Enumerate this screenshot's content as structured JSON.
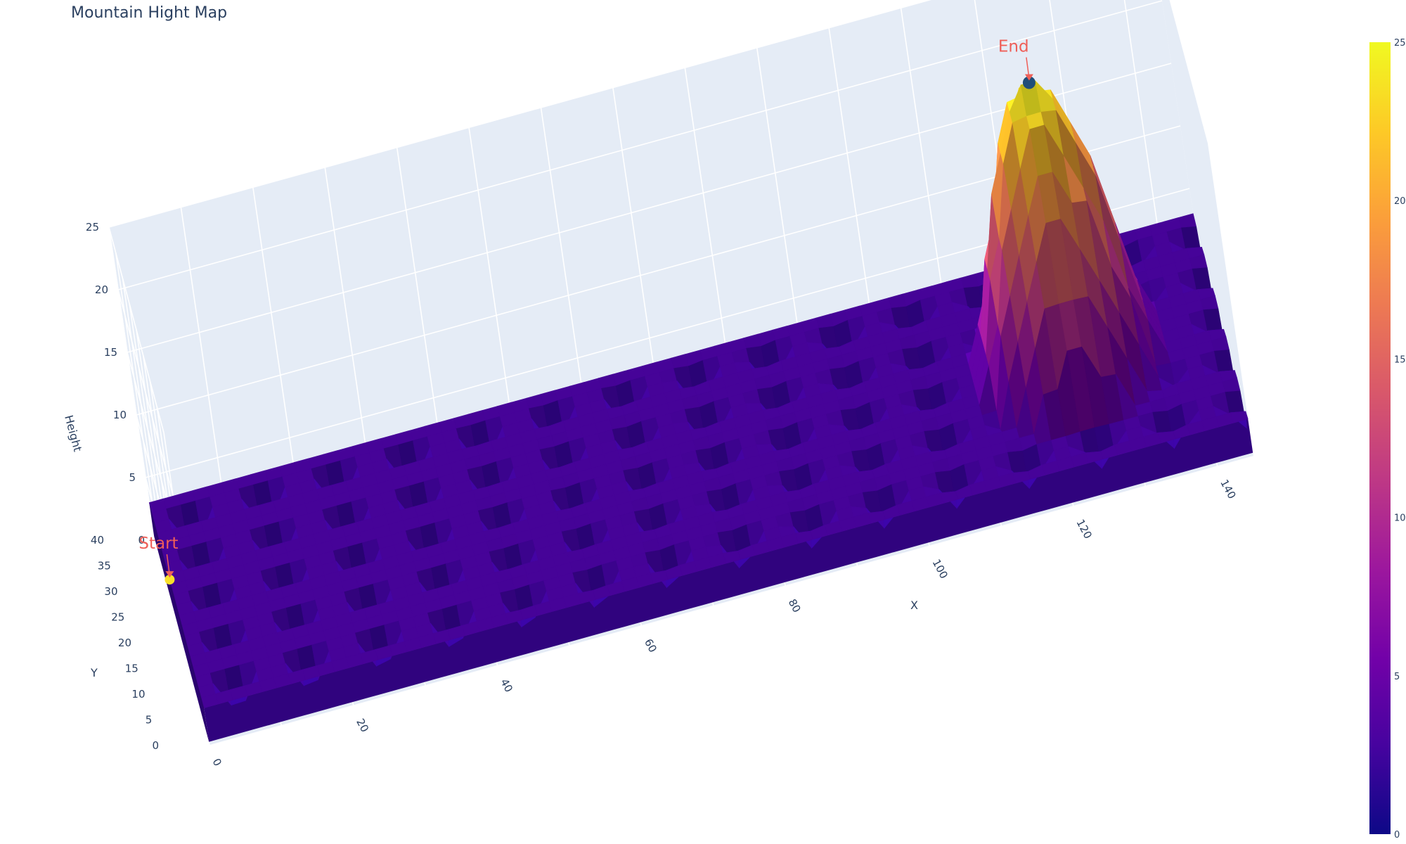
{
  "title": "Mountain Hight Map",
  "chart_data": {
    "type": "surface",
    "title": "Mountain Hight Map",
    "x": {
      "label": "X",
      "range": [
        0,
        145
      ],
      "ticks": [
        0,
        20,
        40,
        60,
        80,
        100,
        120,
        140
      ]
    },
    "y": {
      "label": "Y",
      "range": [
        0,
        40
      ],
      "ticks": [
        0,
        5,
        10,
        15,
        20,
        25,
        30,
        35,
        40
      ]
    },
    "z": {
      "label": "Height",
      "range": [
        0,
        25
      ],
      "ticks": [
        0,
        5,
        10,
        15,
        20,
        25
      ]
    },
    "colorscale": "plasma",
    "colorbar": {
      "range": [
        0,
        25
      ],
      "ticks": [
        0,
        5,
        10,
        15,
        20,
        25
      ]
    },
    "surface": {
      "base_height": 3,
      "pits": "periodic depressions of depth ~2-3 across the plateau",
      "mountain": {
        "x_center": 124,
        "y_center": 20,
        "x_halfwidth": 15,
        "peak_height": 25
      }
    },
    "markers": [
      {
        "name": "Start",
        "x": 0,
        "y": 25,
        "z": 3
      },
      {
        "name": "End",
        "x": 124,
        "y": 20,
        "z": 25
      }
    ],
    "annotations": [
      {
        "text": "Start",
        "x": 0,
        "y": 25,
        "z": 3
      },
      {
        "text": "End",
        "x": 124,
        "y": 20,
        "z": 25
      }
    ],
    "grid": true,
    "legend": "none"
  },
  "colors": {
    "pane": "#e5ecf6",
    "grid": "#ffffff",
    "text": "#2a3f5f",
    "annotation": "#ef5f58",
    "end_marker": "#1f4e79",
    "start_marker": "#f8e02a"
  }
}
